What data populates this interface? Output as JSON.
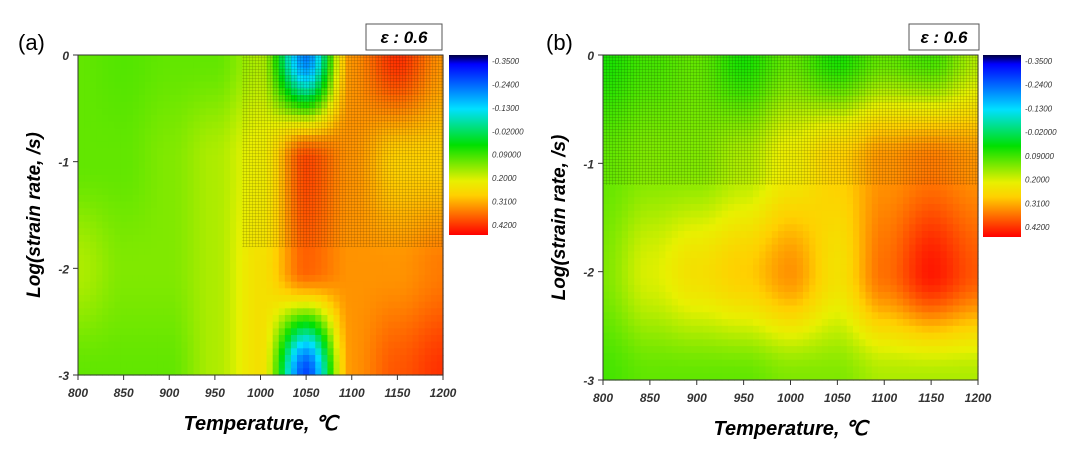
{
  "colorbar": {
    "labels": [
      "-0.3500",
      "-0.2400",
      "-0.1300",
      "-0.02000",
      "0.09000",
      "0.2000",
      "0.3100",
      "0.4200"
    ]
  },
  "chart_data": [
    {
      "type": "heatmap",
      "panel_label": "(a)",
      "strain_label": "ε : 0.6",
      "xlabel": "Temperature,  ℃",
      "ylabel": "Log(strain rate, /s)",
      "xlim": [
        800,
        1200
      ],
      "ylim": [
        -3,
        0
      ],
      "x_ticks": [
        "800",
        "850",
        "900",
        "950",
        "1000",
        "1050",
        "1100",
        "1150",
        "1200"
      ],
      "y_ticks": [
        "0",
        "-1",
        "-2",
        "-3"
      ],
      "x": [
        800,
        850,
        900,
        950,
        1000,
        1050,
        1100,
        1150,
        1200
      ],
      "y": [
        0,
        -1,
        -2,
        -3
      ],
      "z": [
        [
          0.1,
          0.09,
          0.1,
          0.1,
          0.15,
          -0.2,
          0.3,
          0.38,
          0.3
        ],
        [
          0.1,
          0.1,
          0.12,
          0.15,
          0.2,
          0.36,
          0.3,
          0.25,
          0.25
        ],
        [
          0.15,
          0.12,
          0.12,
          0.15,
          0.22,
          0.34,
          0.3,
          0.3,
          0.32
        ],
        [
          0.1,
          0.1,
          0.1,
          0.15,
          0.22,
          -0.25,
          0.3,
          0.35,
          0.38
        ]
      ],
      "color_range": [
        -0.35,
        0.42
      ]
    },
    {
      "type": "heatmap",
      "panel_label": "(b)",
      "strain_label": "ε : 0.6",
      "xlabel": "Temperature,  ℃",
      "ylabel": "Log(strain rate, /s)",
      "xlim": [
        800,
        1200
      ],
      "ylim": [
        -3,
        0
      ],
      "x_ticks": [
        "800",
        "850",
        "900",
        "950",
        "1000",
        "1050",
        "1100",
        "1150",
        "1200"
      ],
      "y_ticks": [
        "0",
        "-1",
        "-2",
        "-3"
      ],
      "x": [
        800,
        850,
        900,
        950,
        1000,
        1050,
        1100,
        1150,
        1200
      ],
      "y": [
        0,
        -1,
        -2,
        -3
      ],
      "z": [
        [
          0.05,
          0.08,
          0.1,
          0.05,
          0.1,
          0.05,
          0.1,
          0.08,
          0.15
        ],
        [
          0.1,
          0.12,
          0.12,
          0.15,
          0.2,
          0.25,
          0.3,
          0.32,
          0.3
        ],
        [
          0.12,
          0.18,
          0.22,
          0.25,
          0.3,
          0.22,
          0.33,
          0.4,
          0.35
        ],
        [
          0.08,
          0.1,
          0.1,
          0.1,
          0.12,
          0.12,
          0.15,
          0.15,
          0.15
        ]
      ],
      "color_range": [
        -0.35,
        0.42
      ]
    }
  ]
}
